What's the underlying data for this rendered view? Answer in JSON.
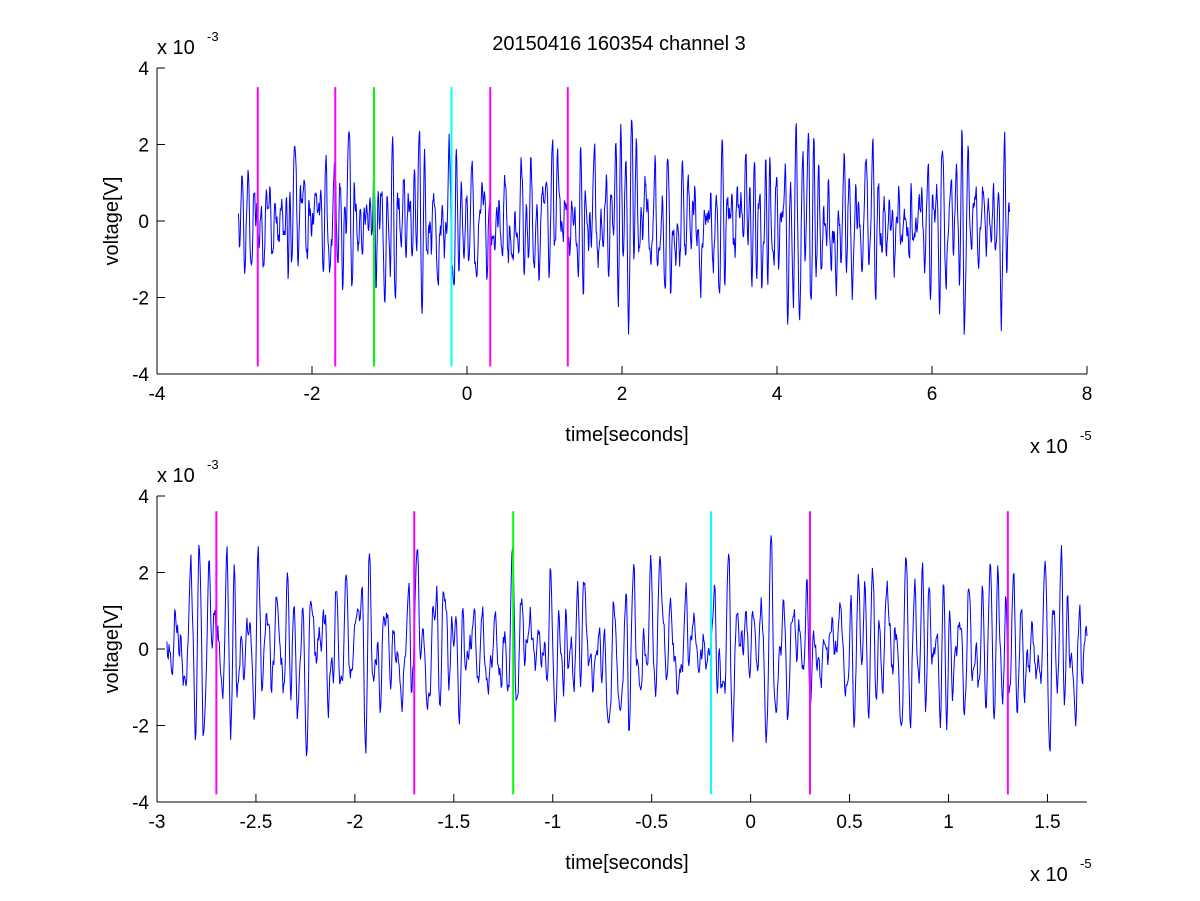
{
  "figure": {
    "title": "20150416 160354 channel 3"
  },
  "colors": {
    "signal": "#0000ff",
    "magenta": "#ff00ff",
    "green": "#00ff00",
    "cyan": "#00ffff",
    "axis": "#000000",
    "background": "#ffffff"
  },
  "chart_data": [
    {
      "type": "line",
      "title": "20150416 160354 channel 3",
      "xlabel": "time[seconds]",
      "ylabel": "voltage[V]",
      "x_exponent": "x 10",
      "x_exponent_power": "-5",
      "y_exponent": "x 10",
      "y_exponent_power": "-3",
      "xlim": [
        -4,
        8
      ],
      "ylim": [
        -4,
        4
      ],
      "x_ticks": [
        -4,
        -2,
        0,
        2,
        4,
        6,
        8
      ],
      "x_tick_labels": [
        "-4",
        "-2",
        "0",
        "2",
        "4",
        "6",
        "8"
      ],
      "y_ticks": [
        -4,
        -2,
        0,
        2,
        4
      ],
      "y_tick_labels": [
        "-4",
        "-2",
        "0",
        "2",
        "4"
      ],
      "grid": false,
      "series": [
        {
          "color": "#0000ff",
          "x_start": -2.95,
          "x_end": 7.0,
          "approx_amplitude": 1.1,
          "y_range": [
            -3.5,
            2.9
          ]
        }
      ],
      "vertical_markers": [
        {
          "x": -2.7,
          "color": "#ff00ff",
          "y_from": -3.8,
          "y_to": 3.5
        },
        {
          "x": -1.7,
          "color": "#ff00ff",
          "y_from": -3.8,
          "y_to": 3.5
        },
        {
          "x": -1.2,
          "color": "#00ff00",
          "y_from": -3.8,
          "y_to": 3.5
        },
        {
          "x": -0.2,
          "color": "#00ffff",
          "y_from": -3.8,
          "y_to": 3.5
        },
        {
          "x": 0.3,
          "color": "#ff00ff",
          "y_from": -3.8,
          "y_to": 3.5
        },
        {
          "x": 1.3,
          "color": "#ff00ff",
          "y_from": -3.8,
          "y_to": 3.5
        }
      ]
    },
    {
      "type": "line",
      "title": "",
      "xlabel": "time[seconds]",
      "ylabel": "voltage[V]",
      "x_exponent": "x 10",
      "x_exponent_power": "-5",
      "y_exponent": "x 10",
      "y_exponent_power": "-3",
      "xlim": [
        -3.0,
        1.7
      ],
      "ylim": [
        -4,
        4
      ],
      "x_ticks": [
        -3,
        -2.5,
        -2,
        -1.5,
        -1,
        -0.5,
        0,
        0.5,
        1,
        1.5
      ],
      "x_tick_labels": [
        "-3",
        "-2.5",
        "-2",
        "-1.5",
        "-1",
        "-0.5",
        "0",
        "0.5",
        "1",
        "1.5"
      ],
      "y_ticks": [
        -4,
        -2,
        0,
        2,
        4
      ],
      "y_tick_labels": [
        "-4",
        "-2",
        "0",
        "2",
        "4"
      ],
      "grid": false,
      "series": [
        {
          "color": "#0000ff",
          "x_start": -2.95,
          "x_end": 1.7,
          "approx_amplitude": 1.1,
          "y_range": [
            -3.0,
            3.3
          ]
        }
      ],
      "vertical_markers": [
        {
          "x": -2.7,
          "color": "#ff00ff",
          "y_from": -3.8,
          "y_to": 3.6
        },
        {
          "x": -1.7,
          "color": "#ff00ff",
          "y_from": -3.8,
          "y_to": 3.6
        },
        {
          "x": -1.2,
          "color": "#00ff00",
          "y_from": -3.8,
          "y_to": 3.6
        },
        {
          "x": -0.2,
          "color": "#00ffff",
          "y_from": -3.8,
          "y_to": 3.6
        },
        {
          "x": 0.3,
          "color": "#ff00ff",
          "y_from": -3.8,
          "y_to": 3.6
        },
        {
          "x": 1.3,
          "color": "#ff00ff",
          "y_from": -3.8,
          "y_to": 3.6
        }
      ]
    }
  ]
}
